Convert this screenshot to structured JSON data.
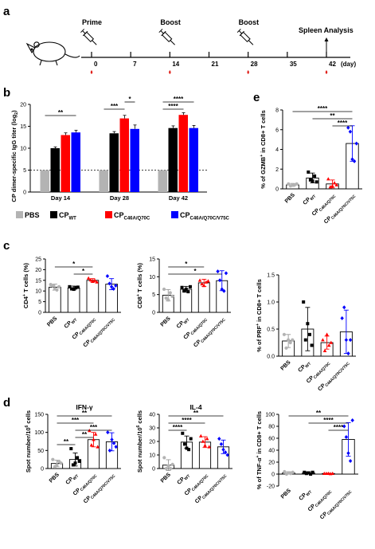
{
  "panels": {
    "a": "a",
    "b": "b",
    "c": "c",
    "d": "d",
    "e": "e"
  },
  "timeline": {
    "events": [
      {
        "label": "Prime",
        "day": 0
      },
      {
        "label": "Boost",
        "day": 14
      },
      {
        "label": "Boost",
        "day": 28
      },
      {
        "label": "Spleen Analysis",
        "day": 42
      }
    ],
    "ticks": [
      "0",
      "7",
      "14",
      "21",
      "28",
      "35",
      "42"
    ],
    "unit": "(day)"
  },
  "legend_b": [
    {
      "label": "PBS",
      "color": "#b3b3b3"
    },
    {
      "label": "CP",
      "sub": "WT",
      "color": "#000000"
    },
    {
      "label": "CP",
      "sub": "C46A/Q70C",
      "color": "#ff0000"
    },
    {
      "label": "CP",
      "sub": "C46A/Q70C/V75C",
      "color": "#0000ff"
    }
  ],
  "group_labels": [
    {
      "main": "PBS",
      "sub": ""
    },
    {
      "main": "CP",
      "sub": "WT"
    },
    {
      "main": "CP",
      "sub": "C46A/Q70C"
    },
    {
      "main": "CP",
      "sub": "C46A/Q70C/V75C"
    }
  ],
  "colors": {
    "PBS": "#b3b3b3",
    "WT": "#000000",
    "C46A": "#ff0000",
    "V75C": "#0000ff"
  },
  "chart_data": [
    {
      "id": "b",
      "type": "bar",
      "categories": [
        "Day 14",
        "Day 28",
        "Day 42"
      ],
      "ylabel": "CP dimer-specific IgG titer (log",
      "ylabel_sub": "2",
      "ylabel_tail": ")",
      "ylim": [
        0,
        20
      ],
      "yticks": [
        "0",
        "5",
        "10",
        "15",
        "20"
      ],
      "baseline": 5,
      "series": [
        {
          "name": "PBS",
          "values": [
            5,
            5,
            5
          ],
          "errors": [
            0,
            0,
            0
          ]
        },
        {
          "name": "CP WT",
          "values": [
            10.0,
            13.4,
            14.6
          ],
          "errors": [
            0.3,
            0.4,
            0.5
          ]
        },
        {
          "name": "CP C46A/Q70C",
          "values": [
            13.0,
            16.8,
            17.6
          ],
          "errors": [
            0.5,
            0.7,
            0.5
          ]
        },
        {
          "name": "CP C46A/Q70C/V75C",
          "values": [
            13.6,
            14.4,
            14.6
          ],
          "errors": [
            0.5,
            0.9,
            0.6
          ]
        }
      ],
      "significance": [
        {
          "text": "**",
          "from": 0,
          "to": 3,
          "cat": 0
        },
        {
          "text": "***",
          "from": 0,
          "to": 2,
          "cat": 1
        },
        {
          "text": "*",
          "from": 2,
          "to": 3,
          "cat": 1
        },
        {
          "text": "****",
          "from": 0,
          "to": 2,
          "cat": 2
        },
        {
          "text": "****",
          "from": 0,
          "to": 3,
          "cat": 2
        }
      ]
    },
    {
      "id": "c1",
      "type": "scatter-bar",
      "ylabel": "CD4",
      "ylabel_sup": "+",
      "ylabel_tail": " T cells (%)",
      "ylim": [
        0,
        25
      ],
      "yticks": [
        "0",
        "5",
        "10",
        "15",
        "20",
        "25"
      ],
      "means": [
        11.8,
        11.4,
        15.0,
        13.2
      ],
      "sd": [
        1.4,
        0.9,
        0.8,
        2.6
      ],
      "points": [
        [
          13.0,
          12.5,
          11.0,
          10.5,
          12.0
        ],
        [
          12.0,
          11.0,
          10.8,
          11.5,
          11.8
        ],
        [
          16.0,
          15.2,
          14.5,
          15.0,
          14.2
        ],
        [
          17.0,
          13.5,
          12.0,
          11.0,
          12.5
        ]
      ],
      "significance": [
        {
          "text": "*",
          "from": 0,
          "to": 2
        },
        {
          "text": "*",
          "from": 1,
          "to": 2
        }
      ]
    },
    {
      "id": "c2",
      "type": "scatter-bar",
      "ylabel": "CD8",
      "ylabel_sup": "+",
      "ylabel_tail": " T cells (%)",
      "ylim": [
        0,
        15
      ],
      "yticks": [
        "0",
        "5",
        "10",
        "15"
      ],
      "means": [
        4.8,
        6.5,
        8.3,
        8.9
      ],
      "sd": [
        1.6,
        0.8,
        1.0,
        2.8
      ],
      "points": [
        [
          6.5,
          4.0,
          3.5,
          5.5,
          4.5
        ],
        [
          7.0,
          6.0,
          6.5,
          5.8,
          7.2
        ],
        [
          9.0,
          8.0,
          7.5,
          8.5,
          8.8
        ],
        [
          11.5,
          9.0,
          6.5,
          6.0,
          11.0
        ]
      ],
      "significance": [
        {
          "text": "*",
          "from": 0,
          "to": 2
        },
        {
          "text": "*",
          "from": 0,
          "to": 3
        }
      ]
    },
    {
      "id": "c3",
      "type": "scatter-bar",
      "ylabel": "% of PRF",
      "ylabel_sup": "+",
      "ylabel_tail": " in CD8+ T cells",
      "ylim": [
        0,
        1.5
      ],
      "yticks": [
        "0.0",
        "0.5",
        "1.0",
        "1.5"
      ],
      "means": [
        0.28,
        0.5,
        0.25,
        0.45
      ],
      "sd": [
        0.12,
        0.4,
        0.12,
        0.4
      ],
      "points": [
        [
          0.4,
          0.15,
          0.3,
          0.25,
          0.3
        ],
        [
          1.0,
          0.3,
          0.6,
          0.4,
          0.2
        ],
        [
          0.3,
          0.1,
          0.4,
          0.2,
          0.25
        ],
        [
          0.7,
          0.9,
          0.3,
          0.05,
          0.3
        ]
      ],
      "significance": []
    },
    {
      "id": "d1",
      "type": "scatter-bar",
      "title": "IFN-γ",
      "ylabel": "Spot number/10",
      "ylabel_sup": "6",
      "ylabel_tail": " cells",
      "ylim": [
        0,
        150
      ],
      "yticks": [
        "0",
        "50",
        "100",
        "150"
      ],
      "means": [
        14,
        25,
        80,
        74
      ],
      "sd": [
        9,
        18,
        20,
        25
      ],
      "points": [
        [
          25,
          5,
          10,
          20,
          15
        ],
        [
          55,
          10,
          15,
          30,
          20
        ],
        [
          105,
          65,
          80,
          95,
          60
        ],
        [
          100,
          50,
          80,
          70,
          60
        ]
      ],
      "significance": [
        {
          "text": "**",
          "from": 0,
          "to": 3
        },
        {
          "text": "***",
          "from": 0,
          "to": 2
        },
        {
          "text": "***",
          "from": 1,
          "to": 3
        },
        {
          "text": "**",
          "from": 1,
          "to": 2
        },
        {
          "text": "**",
          "from": 0,
          "to": 1
        }
      ]
    },
    {
      "id": "d2",
      "type": "scatter-bar",
      "title": "IL-4",
      "ylabel": "Spot number/10",
      "ylabel_sup": "6",
      "ylabel_tail": " cells",
      "ylim": [
        0,
        40
      ],
      "yticks": [
        "0",
        "10",
        "20",
        "30",
        "40"
      ],
      "means": [
        2.5,
        19.5,
        19.5,
        16
      ],
      "sd": [
        4,
        4.5,
        4,
        5
      ],
      "points": [
        [
          8,
          0,
          2,
          0,
          3
        ],
        [
          26,
          18,
          15,
          14,
          22
        ],
        [
          24,
          20,
          17,
          22,
          16
        ],
        [
          22,
          18,
          14,
          12,
          10
        ]
      ],
      "significance": [
        {
          "text": "**",
          "from": 0,
          "to": 3
        },
        {
          "text": "****",
          "from": 0,
          "to": 2
        },
        {
          "text": "****",
          "from": 0,
          "to": 1
        }
      ]
    },
    {
      "id": "e1",
      "type": "scatter-bar",
      "ylabel": "% of GZMB",
      "ylabel_sup": "+",
      "ylabel_tail": " in CD8+ T cells",
      "ylim": [
        0,
        8
      ],
      "yticks": [
        "0",
        "2",
        "4",
        "6",
        "8"
      ],
      "means": [
        0.4,
        1.1,
        0.5,
        4.6
      ],
      "sd": [
        0.15,
        0.5,
        0.4,
        1.8
      ],
      "points": [
        [
          0.5,
          0.3,
          0.4,
          0.4,
          0.5
        ],
        [
          1.7,
          0.9,
          0.8,
          1.3,
          0.7
        ],
        [
          1.0,
          0.2,
          0.3,
          0.6,
          0.4
        ],
        [
          6.2,
          5.8,
          3.0,
          2.8,
          4.6
        ]
      ],
      "significance": [
        {
          "text": "****",
          "from": 0,
          "to": 3
        },
        {
          "text": "**",
          "from": 1,
          "to": 3
        },
        {
          "text": "****",
          "from": 2,
          "to": 3
        }
      ]
    },
    {
      "id": "e2",
      "type": "scatter-bar",
      "ylabel": "% of TNF-α",
      "ylabel_sup": "+",
      "ylabel_tail": " in CD8+ T cells",
      "ylim": [
        -20,
        100
      ],
      "yticks": [
        "-20",
        "0",
        "20",
        "40",
        "60",
        "80",
        "100"
      ],
      "means": [
        2,
        2,
        1,
        58
      ],
      "sd": [
        2,
        2,
        0.5,
        28
      ],
      "points": [
        [
          4,
          0,
          2,
          1,
          3
        ],
        [
          3,
          1,
          2,
          0,
          3
        ],
        [
          1,
          1,
          1,
          0.5,
          1
        ],
        [
          80,
          62,
          35,
          22,
          90
        ]
      ],
      "significance": [
        {
          "text": "**",
          "from": 0,
          "to": 3
        },
        {
          "text": "****",
          "from": 1,
          "to": 3
        },
        {
          "text": "****",
          "from": 2,
          "to": 3
        }
      ]
    }
  ]
}
